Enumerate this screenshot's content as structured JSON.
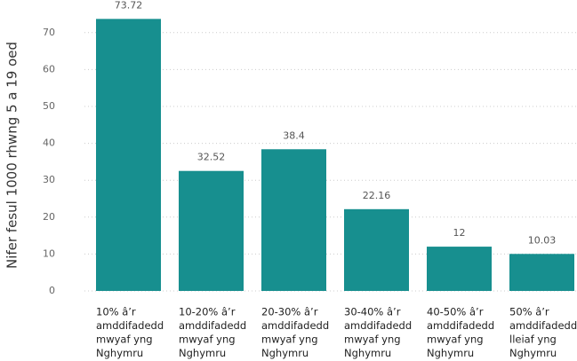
{
  "chart_data": {
    "type": "bar",
    "y_label": "Nifer fesul 1000 rhwng 5 a 19 oed",
    "categories": [
      [
        "10% â’r",
        "amddifadedd",
        "mwyaf yng",
        "Nghymru"
      ],
      [
        "10-20% â’r",
        "amddifadedd",
        "mwyaf yng",
        "Nghymru"
      ],
      [
        "20-30% â’r",
        "amddifadedd",
        "mwyaf yng",
        "Nghymru"
      ],
      [
        "30-40% â’r",
        "amddifadedd",
        "mwyaf yng",
        "Nghymru"
      ],
      [
        "40-50% â’r",
        "amddifadedd",
        "mwyaf yng",
        "Nghymru"
      ],
      [
        "50% â’r",
        "amddifadedd",
        "lleiaf yng",
        "Nghymru"
      ]
    ],
    "values": [
      73.72,
      32.52,
      38.4,
      22.16,
      12,
      10.03
    ],
    "color": "#178f8f",
    "ylim": [
      0,
      75
    ],
    "yticks": [
      0,
      10,
      20,
      30,
      40,
      50,
      60,
      70
    ],
    "grid": true
  }
}
